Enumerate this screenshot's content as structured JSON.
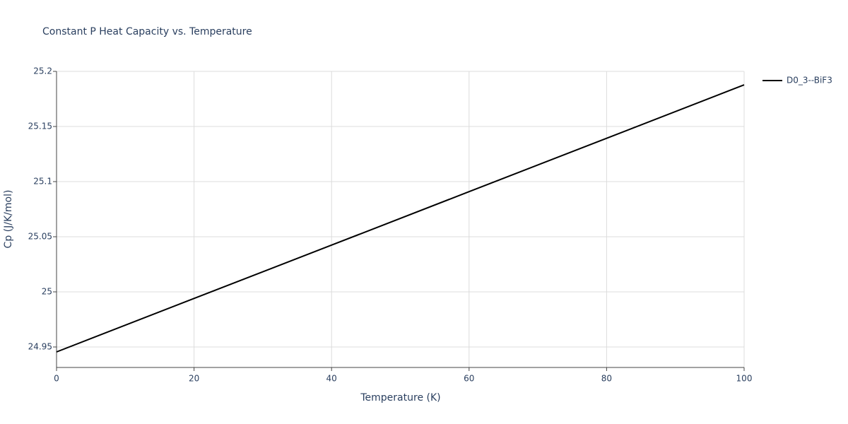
{
  "chart_data": {
    "type": "line",
    "title": "Constant P Heat Capacity vs. Temperature",
    "x_label": "Temperature (K)",
    "y_label": "Cp (J/K/mol)",
    "x": [
      0,
      20,
      40,
      60,
      80,
      100
    ],
    "series": [
      {
        "name": "D0_3--BiF3",
        "color": "#000000",
        "values": [
          24.9455,
          24.994,
          25.0424,
          25.0909,
          25.1393,
          25.1878
        ]
      }
    ],
    "xlim": [
      0,
      100
    ],
    "xticks": [
      0,
      20,
      40,
      60,
      80,
      100
    ],
    "ylim": [
      24.9314,
      25.2
    ],
    "yticks": [
      24.95,
      25,
      25.05,
      25.1,
      25.15,
      25.2
    ],
    "grid": true,
    "legend": "right"
  }
}
